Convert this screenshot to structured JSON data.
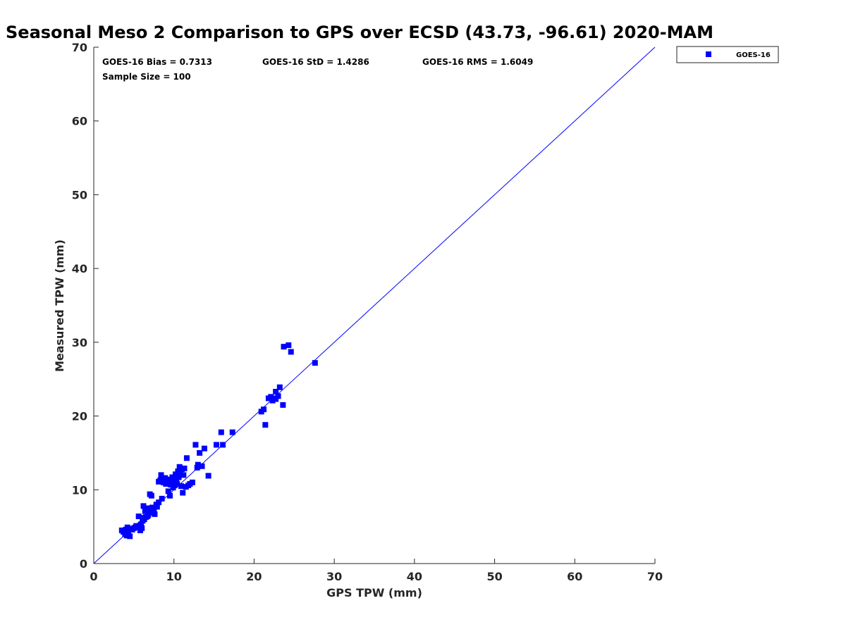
{
  "chart_data": {
    "type": "scatter",
    "title": "Seasonal Meso 2 Comparison to GPS over ECSD (43.73, -96.61) 2020-MAM",
    "xlabel": "GPS TPW (mm)",
    "ylabel": "Measured TPW (mm)",
    "xlim": [
      0,
      70
    ],
    "ylim": [
      0,
      70
    ],
    "xticks": [
      0,
      10,
      20,
      30,
      40,
      50,
      60,
      70
    ],
    "yticks": [
      0,
      10,
      20,
      30,
      40,
      50,
      60,
      70
    ],
    "grid": false,
    "legend_position": "outside-top-right",
    "reference_line": {
      "from": [
        0,
        0
      ],
      "to": [
        70,
        70
      ],
      "color": "#0000ff"
    },
    "annotations": {
      "bias": "GOES-16 Bias = 0.7313",
      "std": "GOES-16 StD = 1.4286",
      "rms": "GOES-16 RMS = 1.6049",
      "sample_size": "Sample Size = 100"
    },
    "series": [
      {
        "name": "GOES-16",
        "color": "#0000ff",
        "marker": "square",
        "points": [
          [
            3.5,
            4.5
          ],
          [
            3.7,
            4.3
          ],
          [
            3.9,
            4.0
          ],
          [
            4.0,
            4.6
          ],
          [
            4.1,
            3.8
          ],
          [
            4.3,
            4.2
          ],
          [
            4.5,
            3.7
          ],
          [
            4.6,
            4.7
          ],
          [
            4.8,
            4.6
          ],
          [
            5.0,
            4.8
          ],
          [
            5.2,
            4.9
          ],
          [
            5.5,
            5.0
          ],
          [
            5.6,
            6.4
          ],
          [
            5.8,
            4.5
          ],
          [
            5.9,
            5.3
          ],
          [
            6.0,
            4.8
          ],
          [
            6.1,
            5.8
          ],
          [
            6.1,
            6.2
          ],
          [
            6.2,
            7.8
          ],
          [
            6.3,
            6.0
          ],
          [
            6.4,
            7.1
          ],
          [
            6.5,
            6.3
          ],
          [
            6.6,
            7.5
          ],
          [
            6.8,
            6.6
          ],
          [
            6.9,
            7.3
          ],
          [
            7.0,
            9.4
          ],
          [
            7.1,
            6.9
          ],
          [
            7.2,
            9.2
          ],
          [
            7.3,
            7.6
          ],
          [
            7.5,
            7.0
          ],
          [
            7.6,
            6.7
          ],
          [
            7.9,
            7.7
          ],
          [
            8.1,
            8.3
          ],
          [
            8.1,
            11.1
          ],
          [
            8.3,
            11.3
          ],
          [
            8.4,
            12.0
          ],
          [
            8.5,
            8.8
          ],
          [
            8.7,
            11.0
          ],
          [
            8.9,
            11.6
          ],
          [
            9.0,
            10.8
          ],
          [
            9.2,
            11.2
          ],
          [
            9.3,
            9.8
          ],
          [
            9.4,
            11.4
          ],
          [
            9.5,
            9.2
          ],
          [
            9.6,
            10.7
          ],
          [
            9.7,
            11.1
          ],
          [
            9.8,
            11.7
          ],
          [
            9.9,
            10.3
          ],
          [
            10.0,
            11.4
          ],
          [
            10.1,
            10.6
          ],
          [
            10.2,
            12.1
          ],
          [
            10.3,
            11.2
          ],
          [
            10.4,
            10.8
          ],
          [
            10.5,
            12.5
          ],
          [
            10.6,
            11.7
          ],
          [
            10.7,
            13.1
          ],
          [
            10.8,
            12.2
          ],
          [
            10.9,
            10.5
          ],
          [
            11.0,
            12.8
          ],
          [
            11.1,
            9.6
          ],
          [
            11.2,
            12.0
          ],
          [
            11.3,
            12.9
          ],
          [
            11.5,
            10.4
          ],
          [
            11.6,
            14.3
          ],
          [
            12.0,
            10.8
          ],
          [
            12.3,
            11.0
          ],
          [
            12.7,
            16.1
          ],
          [
            13.0,
            13.4
          ],
          [
            13.2,
            15.0
          ],
          [
            13.5,
            13.2
          ],
          [
            13.8,
            15.6
          ],
          [
            14.3,
            11.9
          ],
          [
            15.3,
            16.1
          ],
          [
            15.9,
            17.8
          ],
          [
            16.1,
            16.1
          ],
          [
            17.3,
            17.8
          ],
          [
            20.9,
            20.6
          ],
          [
            21.2,
            20.9
          ],
          [
            21.4,
            18.8
          ],
          [
            21.8,
            22.4
          ],
          [
            22.1,
            22.6
          ],
          [
            22.3,
            22.1
          ],
          [
            22.5,
            22.4
          ],
          [
            22.7,
            22.3
          ],
          [
            22.7,
            23.3
          ],
          [
            23.0,
            22.7
          ],
          [
            23.2,
            23.9
          ],
          [
            23.6,
            21.5
          ],
          [
            23.7,
            29.4
          ],
          [
            24.3,
            29.6
          ],
          [
            24.6,
            28.7
          ],
          [
            27.6,
            27.2
          ],
          [
            4.2,
            4.9
          ],
          [
            5.3,
            5.1
          ],
          [
            6.7,
            6.4
          ],
          [
            7.8,
            8.0
          ],
          [
            9.1,
            10.9
          ],
          [
            10.5,
            11.9
          ],
          [
            11.8,
            10.6
          ],
          [
            12.9,
            13.0
          ]
        ]
      }
    ]
  }
}
